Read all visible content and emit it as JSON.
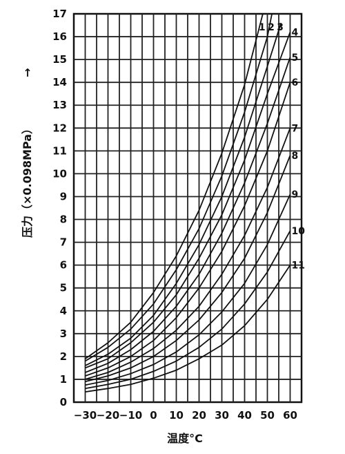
{
  "chart_data": {
    "type": "line",
    "xlabel": "温度°C",
    "ylabel": "压力（×0.098MPa）",
    "ylabel_arrow": "→",
    "xlim": [
      -35,
      65
    ],
    "ylim": [
      0,
      17
    ],
    "grid": true,
    "x_tick_labels": [
      "−30",
      "−20",
      "−10",
      "0",
      "10",
      "20",
      "30",
      "40",
      "50",
      "60"
    ],
    "x_ticks": [
      -30,
      -20,
      -10,
      0,
      10,
      20,
      30,
      40,
      50,
      60
    ],
    "y_ticks": [
      0,
      1,
      2,
      3,
      4,
      5,
      6,
      7,
      8,
      9,
      10,
      11,
      12,
      13,
      14,
      15,
      16,
      17
    ],
    "series": [
      {
        "name": "1",
        "x": [
          -30,
          -20,
          -10,
          0,
          10,
          20,
          30,
          40,
          48
        ],
        "y": [
          1.9,
          2.6,
          3.5,
          4.8,
          6.4,
          8.4,
          10.9,
          13.9,
          17.0
        ]
      },
      {
        "name": "2",
        "x": [
          -30,
          -20,
          -10,
          0,
          10,
          20,
          30,
          40,
          50,
          52
        ],
        "y": [
          1.8,
          2.4,
          3.2,
          4.3,
          5.8,
          7.6,
          9.9,
          12.7,
          16.0,
          17.0
        ]
      },
      {
        "name": "3",
        "x": [
          -30,
          -20,
          -10,
          0,
          10,
          20,
          30,
          40,
          50,
          56
        ],
        "y": [
          1.6,
          2.1,
          2.8,
          3.8,
          5.2,
          6.9,
          9.0,
          11.6,
          14.7,
          16.6
        ]
      },
      {
        "name": "4",
        "x": [
          -30,
          -20,
          -10,
          0,
          10,
          20,
          30,
          40,
          50,
          60
        ],
        "y": [
          1.5,
          1.9,
          2.6,
          3.5,
          4.7,
          6.3,
          8.2,
          10.6,
          13.5,
          16.2
        ]
      },
      {
        "name": "5",
        "x": [
          -30,
          -20,
          -10,
          0,
          10,
          20,
          30,
          40,
          50,
          60
        ],
        "y": [
          1.3,
          1.7,
          2.3,
          3.1,
          4.2,
          5.6,
          7.4,
          9.6,
          12.2,
          15.1
        ]
      },
      {
        "name": "6",
        "x": [
          -30,
          -20,
          -10,
          0,
          10,
          20,
          30,
          40,
          50,
          60
        ],
        "y": [
          1.15,
          1.5,
          2.0,
          2.7,
          3.7,
          5.0,
          6.6,
          8.6,
          11.0,
          14.0
        ]
      },
      {
        "name": "7",
        "x": [
          -30,
          -20,
          -10,
          0,
          10,
          20,
          30,
          40,
          50,
          60
        ],
        "y": [
          1.0,
          1.3,
          1.75,
          2.35,
          3.15,
          4.2,
          5.6,
          7.3,
          9.4,
          12.0
        ]
      },
      {
        "name": "8",
        "x": [
          -30,
          -20,
          -10,
          0,
          10,
          20,
          30,
          40,
          50,
          60
        ],
        "y": [
          0.9,
          1.15,
          1.5,
          2.0,
          2.7,
          3.6,
          4.8,
          6.3,
          8.3,
          10.8
        ]
      },
      {
        "name": "9",
        "x": [
          -30,
          -20,
          -10,
          0,
          10,
          20,
          30,
          40,
          50,
          60
        ],
        "y": [
          0.75,
          0.95,
          1.25,
          1.65,
          2.2,
          2.95,
          3.95,
          5.2,
          6.9,
          9.1
        ]
      },
      {
        "name": "10",
        "x": [
          -30,
          -20,
          -10,
          0,
          10,
          20,
          30,
          40,
          50,
          60
        ],
        "y": [
          0.6,
          0.78,
          1.0,
          1.35,
          1.8,
          2.4,
          3.2,
          4.3,
          5.7,
          7.5
        ]
      },
      {
        "name": "11",
        "x": [
          -30,
          -20,
          -10,
          0,
          10,
          20,
          30,
          40,
          50,
          60
        ],
        "y": [
          0.45,
          0.6,
          0.78,
          1.05,
          1.4,
          1.9,
          2.5,
          3.35,
          4.5,
          6.0
        ]
      }
    ]
  }
}
